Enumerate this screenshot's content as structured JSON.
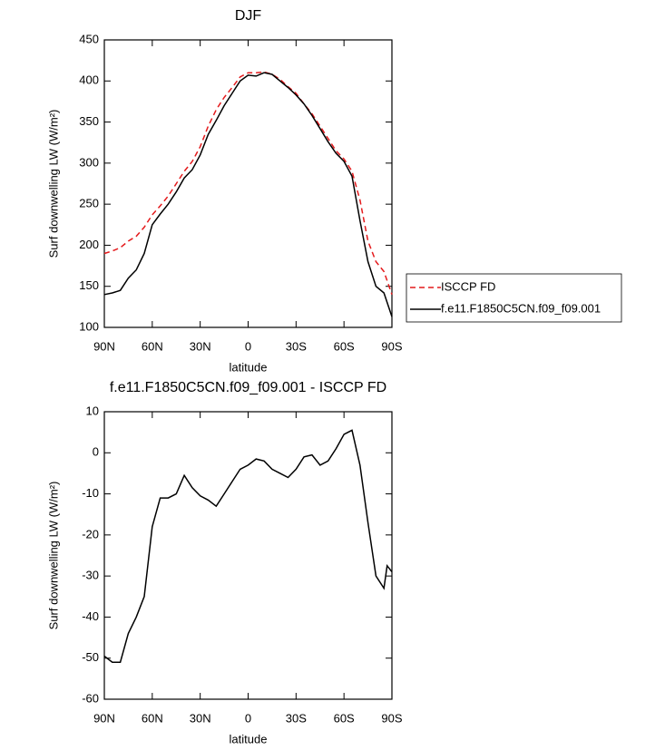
{
  "chart_data": [
    {
      "type": "line",
      "title": "DJF",
      "xlabel": "latitude",
      "ylabel": "Surf downwelling LW (W/m²)",
      "x": [
        90,
        85,
        80,
        75,
        70,
        65,
        60,
        55,
        50,
        45,
        40,
        35,
        30,
        25,
        20,
        15,
        10,
        5,
        0,
        -5,
        -10,
        -15,
        -20,
        -25,
        -30,
        -35,
        -40,
        -45,
        -50,
        -55,
        -60,
        -65,
        -70,
        -75,
        -80,
        -85,
        -90
      ],
      "series": [
        {
          "name": "ISCCP FD",
          "color": "#e41a1c",
          "style": "dashed",
          "values": [
            190,
            193,
            197,
            205,
            211,
            222,
            237,
            248,
            260,
            275,
            290,
            302,
            320,
            345,
            365,
            380,
            392,
            405,
            410,
            410,
            411,
            408,
            402,
            393,
            385,
            372,
            360,
            345,
            330,
            315,
            305,
            290,
            255,
            205,
            180,
            168,
            140
          ]
        },
        {
          "name": "f.e11.F1850C5CN.f09_f09.001",
          "color": "#000000",
          "style": "solid",
          "values": [
            140,
            142,
            145,
            160,
            170,
            190,
            225,
            238,
            250,
            265,
            282,
            292,
            310,
            335,
            352,
            370,
            385,
            400,
            407,
            406,
            410,
            408,
            400,
            392,
            383,
            372,
            358,
            342,
            326,
            312,
            302,
            284,
            230,
            180,
            150,
            142,
            113
          ]
        }
      ],
      "xlim": [
        90,
        -90
      ],
      "xticks": [
        {
          "value": 90,
          "label": "90N"
        },
        {
          "value": 60,
          "label": "60N"
        },
        {
          "value": 30,
          "label": "30N"
        },
        0,
        {
          "value": -30,
          "label": "30S"
        },
        {
          "value": -60,
          "label": "60S"
        },
        {
          "value": -90,
          "label": "90S"
        }
      ],
      "ylim": [
        100,
        450
      ],
      "yticks": [
        100,
        150,
        200,
        250,
        300,
        350,
        400,
        450
      ],
      "legend": "outside-right"
    },
    {
      "type": "line",
      "title": "f.e11.F1850C5CN.f09_f09.001 - ISCCP FD",
      "xlabel": "latitude",
      "ylabel": "Surf downwelling LW (W/m²)",
      "x": [
        90,
        85,
        80,
        75,
        70,
        65,
        60,
        55,
        50,
        45,
        40,
        35,
        30,
        25,
        20,
        15,
        10,
        5,
        0,
        -5,
        -10,
        -15,
        -20,
        -25,
        -30,
        -35,
        -40,
        -45,
        -50,
        -55,
        -60,
        -65,
        -70,
        -75,
        -80,
        -85,
        -87,
        -90
      ],
      "series": [
        {
          "color": "#000000",
          "style": "solid",
          "values": [
            -49.5,
            -51,
            -51,
            -44,
            -40,
            -35,
            -18,
            -11,
            -11,
            -10,
            -5.5,
            -8.5,
            -10.5,
            -11.5,
            -13,
            -10,
            -7,
            -4,
            -3,
            -1.5,
            -2,
            -4,
            -5,
            -6,
            -4,
            -1,
            -0.5,
            -3,
            -2,
            1,
            4.5,
            5.5,
            -3,
            -17,
            -30,
            -33,
            -27.5,
            -29
          ]
        }
      ],
      "xlim": [
        90,
        -90
      ],
      "xticks": [
        {
          "value": 90,
          "label": "90N"
        },
        {
          "value": 60,
          "label": "60N"
        },
        {
          "value": 30,
          "label": "30N"
        },
        0,
        {
          "value": -30,
          "label": "30S"
        },
        {
          "value": -60,
          "label": "60S"
        },
        {
          "value": -90,
          "label": "90S"
        }
      ],
      "ylim": [
        -60,
        10
      ],
      "yticks": [
        -60,
        -50,
        -40,
        -30,
        -20,
        -10,
        0,
        10
      ]
    }
  ]
}
